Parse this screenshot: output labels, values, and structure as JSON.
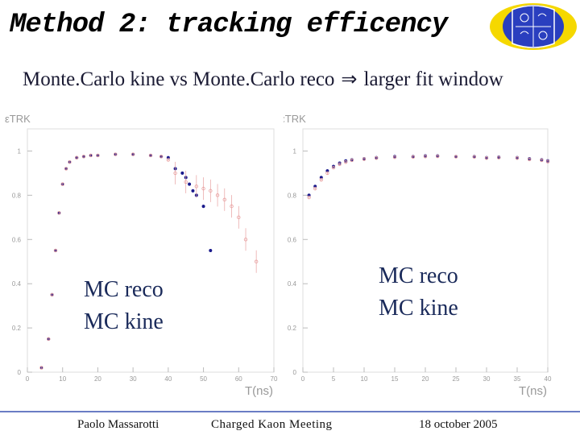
{
  "title": "Method 2: tracking efficency",
  "subtitle": {
    "left": "Monte.Carlo kine vs Monte.Carlo reco",
    "arrow": "⇒",
    "right": "larger fit window"
  },
  "legend": {
    "line1": "MC reco",
    "line2": "MC kine"
  },
  "footer": {
    "author": "Paolo Massarotti",
    "meeting": "Charged Kaon Meeting",
    "date": "18 october 2005"
  },
  "colors": {
    "reco": "#e8a0a0",
    "kine": "#1a1a8c",
    "legend_text": "#1a2a5a",
    "footer_line": "#6a7dc4"
  },
  "chart_data": [
    {
      "type": "scatter",
      "ylabel": "εTRK",
      "xlabel": "T(ns)",
      "xlim": [
        0,
        70
      ],
      "ylim": [
        0,
        1.1
      ],
      "x_ticks": [
        0,
        10,
        20,
        30,
        40,
        50,
        60,
        70
      ],
      "y_ticks": [
        0,
        0.2,
        0.4,
        0.6,
        0.8,
        1
      ],
      "series": [
        {
          "name": "MC kine",
          "x": [
            4,
            6,
            7,
            8,
            9,
            10,
            11,
            12,
            14,
            16,
            18,
            20,
            25,
            30,
            35,
            38,
            40,
            42,
            44,
            45,
            46,
            47,
            48,
            50,
            52
          ],
          "y": [
            0.02,
            0.15,
            0.35,
            0.55,
            0.72,
            0.85,
            0.92,
            0.95,
            0.97,
            0.975,
            0.98,
            0.98,
            0.985,
            0.985,
            0.98,
            0.975,
            0.97,
            0.92,
            0.9,
            0.88,
            0.85,
            0.82,
            0.8,
            0.75,
            0.55
          ]
        },
        {
          "name": "MC reco",
          "x": [
            4,
            6,
            7,
            8,
            9,
            10,
            11,
            12,
            14,
            16,
            18,
            20,
            25,
            30,
            35,
            38,
            40,
            42,
            45,
            48,
            50,
            52,
            54,
            56,
            58,
            60,
            62,
            65
          ],
          "y": [
            0.02,
            0.15,
            0.35,
            0.55,
            0.72,
            0.85,
            0.92,
            0.95,
            0.97,
            0.975,
            0.98,
            0.98,
            0.985,
            0.985,
            0.98,
            0.975,
            0.96,
            0.9,
            0.86,
            0.84,
            0.83,
            0.82,
            0.8,
            0.78,
            0.75,
            0.7,
            0.6,
            0.5
          ]
        }
      ]
    },
    {
      "type": "scatter",
      "ylabel": "εTRK",
      "xlabel": "T(ns)",
      "xlim": [
        0,
        40
      ],
      "ylim": [
        0,
        1.1
      ],
      "x_ticks": [
        0,
        5,
        10,
        15,
        20,
        25,
        30,
        35,
        40
      ],
      "y_ticks": [
        0,
        0.2,
        0.4,
        0.6,
        0.8,
        1
      ],
      "series": [
        {
          "name": "MC kine",
          "x": [
            1,
            2,
            3,
            4,
            5,
            6,
            7,
            8,
            10,
            12,
            15,
            18,
            20,
            22,
            25,
            28,
            30,
            32,
            35,
            37,
            39,
            40
          ],
          "y": [
            0.8,
            0.84,
            0.88,
            0.91,
            0.93,
            0.945,
            0.955,
            0.96,
            0.965,
            0.97,
            0.975,
            0.975,
            0.978,
            0.978,
            0.975,
            0.975,
            0.97,
            0.972,
            0.97,
            0.965,
            0.96,
            0.955
          ]
        },
        {
          "name": "MC reco",
          "x": [
            1,
            2,
            3,
            4,
            5,
            6,
            7,
            8,
            10,
            12,
            15,
            18,
            20,
            22,
            25,
            28,
            30,
            32,
            35,
            37,
            39,
            40
          ],
          "y": [
            0.79,
            0.83,
            0.87,
            0.9,
            0.925,
            0.94,
            0.95,
            0.958,
            0.963,
            0.968,
            0.972,
            0.973,
            0.975,
            0.976,
            0.974,
            0.973,
            0.968,
            0.97,
            0.968,
            0.962,
            0.958,
            0.952
          ]
        }
      ]
    }
  ]
}
